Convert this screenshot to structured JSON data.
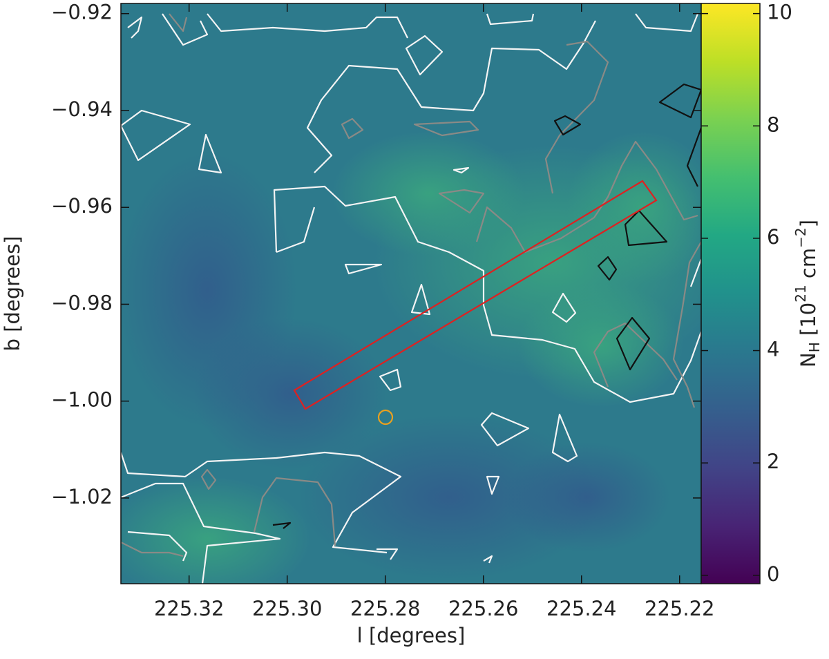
{
  "chart_data": {
    "type": "heatmap",
    "x_label": "l [degrees]",
    "y_label": "b [degrees]",
    "colorbar_label": [
      {
        "text": "N"
      },
      {
        "text": "H",
        "shift": "sub"
      },
      {
        "text": " [10"
      },
      {
        "text": "21",
        "shift": "super"
      },
      {
        "text": " cm"
      },
      {
        "text": "−2",
        "shift": "super"
      },
      {
        "text": "]"
      }
    ],
    "xlim": [
      225.3339,
      225.2156
    ],
    "ylim": [
      -1.0377,
      -0.9179
    ],
    "xticks": [
      225.32,
      {
        "value": 225.3,
        "label": "225.30"
      },
      225.28,
      225.26,
      225.24,
      225.22
    ],
    "yticks": [
      {
        "value": -0.92,
        "label": "−0.92"
      },
      {
        "value": -0.94,
        "label": "−0.94"
      },
      {
        "value": -0.96,
        "label": "−0.96"
      },
      {
        "value": -0.98,
        "label": "−0.98"
      },
      {
        "value": -1.0,
        "label": "−1.00"
      },
      {
        "value": -1.02,
        "label": "−1.02"
      }
    ],
    "colorbar_lim": [
      -0.15,
      10.18
    ],
    "colorbar_ticks": [
      0,
      2,
      4,
      6,
      8,
      10
    ]
  }
}
